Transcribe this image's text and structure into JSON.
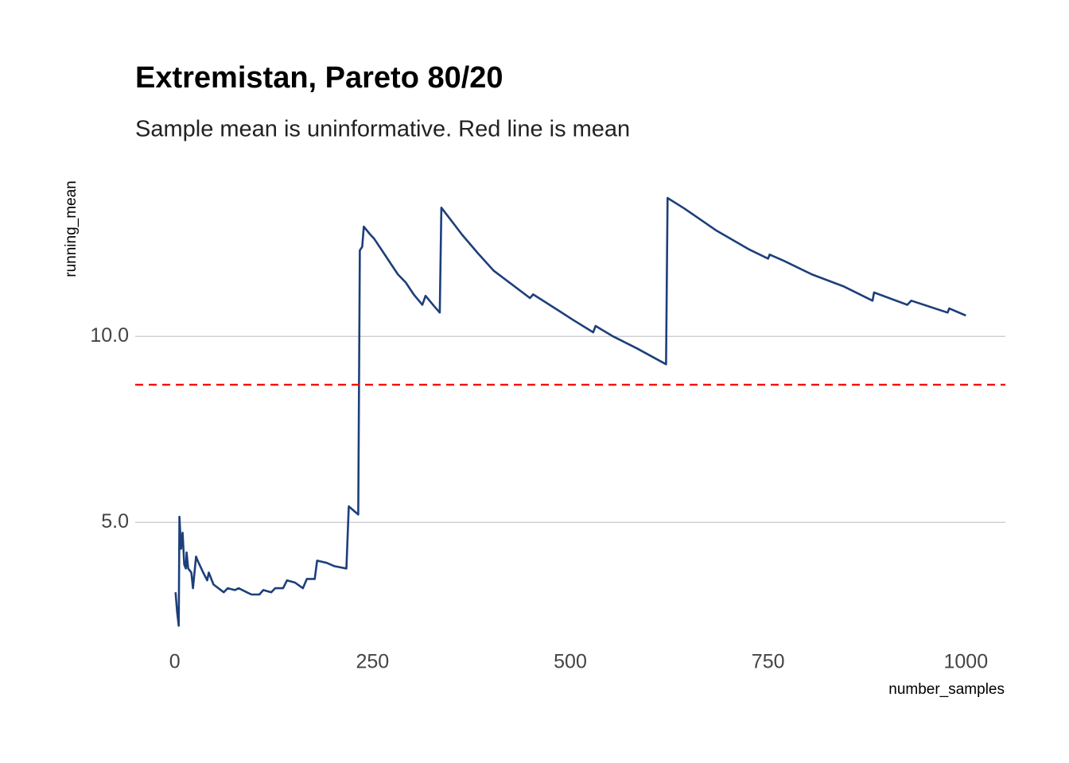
{
  "chart_data": {
    "type": "line",
    "title": "Extremistan, Pareto 80/20",
    "subtitle": "Sample mean is uninformative. Red line is mean",
    "x_label": "number_samples",
    "y_label": "running_mean",
    "x": [
      1,
      3,
      5,
      6,
      8,
      10,
      12,
      14,
      15,
      17,
      21,
      23,
      27,
      29,
      36,
      41,
      43,
      49,
      62,
      67,
      76,
      81,
      91,
      97,
      107,
      112,
      122,
      127,
      137,
      142,
      152,
      162,
      167,
      177,
      180,
      192,
      202,
      217,
      220,
      232,
      234,
      237,
      239,
      247,
      252,
      262,
      272,
      282,
      292,
      302,
      313,
      317,
      328,
      335,
      337,
      348,
      363,
      383,
      403,
      423,
      449,
      453,
      484,
      503,
      529,
      532,
      554,
      584,
      621,
      623,
      644,
      685,
      725,
      750,
      752,
      770,
      805,
      845,
      882,
      884,
      926,
      931,
      977,
      979,
      1000
    ],
    "series": [
      {
        "name": "running_mean",
        "color": "#1d3f7a",
        "values": [
          3.12,
          2.59,
          2.22,
          5.15,
          4.29,
          4.72,
          3.87,
          3.76,
          4.19,
          3.76,
          3.65,
          3.23,
          4.08,
          3.97,
          3.65,
          3.44,
          3.65,
          3.33,
          3.12,
          3.23,
          3.18,
          3.23,
          3.12,
          3.06,
          3.06,
          3.18,
          3.12,
          3.23,
          3.23,
          3.44,
          3.38,
          3.23,
          3.48,
          3.48,
          3.97,
          3.91,
          3.82,
          3.76,
          5.43,
          5.21,
          12.31,
          12.41,
          12.95,
          12.74,
          12.63,
          12.31,
          11.99,
          11.67,
          11.45,
          11.13,
          10.85,
          11.09,
          10.81,
          10.64,
          13.46,
          13.16,
          12.74,
          12.24,
          11.77,
          11.45,
          11.03,
          11.13,
          10.71,
          10.45,
          10.11,
          10.28,
          10.0,
          9.68,
          9.25,
          13.72,
          13.44,
          12.84,
          12.35,
          12.09,
          12.2,
          12.03,
          11.67,
          11.35,
          10.96,
          11.18,
          10.85,
          10.96,
          10.64,
          10.75,
          10.56
        ]
      }
    ],
    "hline": {
      "value": 8.7,
      "color": "#ff0000"
    },
    "xlim": [
      -49.95,
      1049.95
    ],
    "ylim": [
      1.65,
      14.3
    ],
    "xticks": [
      0,
      250,
      500,
      750,
      1000
    ],
    "yticks": [
      {
        "value": 5,
        "label": "5.0"
      },
      {
        "value": 10,
        "label": "10.0"
      }
    ],
    "grid": true
  }
}
